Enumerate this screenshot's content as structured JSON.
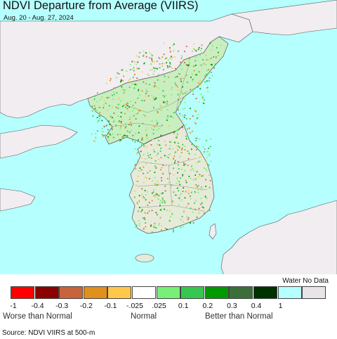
{
  "title": "NDVI Departure from Average (VIIRS)",
  "date_range": "Aug. 20 - Aug. 27, 2024",
  "colors": {
    "water": "#b6ffff",
    "land_nodata": "#f1edf0",
    "border": "#555555"
  },
  "legend": {
    "water_no_data_label": "Water No Data",
    "swatches": [
      {
        "color": "#ff0000"
      },
      {
        "color": "#8b0000"
      },
      {
        "color": "#c8643c"
      },
      {
        "color": "#e0901c"
      },
      {
        "color": "#ffc84a"
      },
      {
        "color": "#ffffff"
      },
      {
        "color": "#78f078"
      },
      {
        "color": "#34c850"
      },
      {
        "color": "#009a00"
      },
      {
        "color": "#3c6e3c"
      },
      {
        "color": "#003200"
      },
      {
        "color": "#b6ffff"
      },
      {
        "color": "#e8e4e8"
      }
    ],
    "ticks": [
      "-1",
      "-0.4",
      "-0.3",
      "-0.2",
      "-0.1",
      "-.025",
      ".025",
      "0.1",
      "0.2",
      "0.3",
      "0.4",
      "1"
    ],
    "captions": {
      "left": "Worse than Normal",
      "center": "Normal",
      "right": "Better than Normal"
    }
  },
  "source": "Source: NDVI VIIRS at 500-m"
}
